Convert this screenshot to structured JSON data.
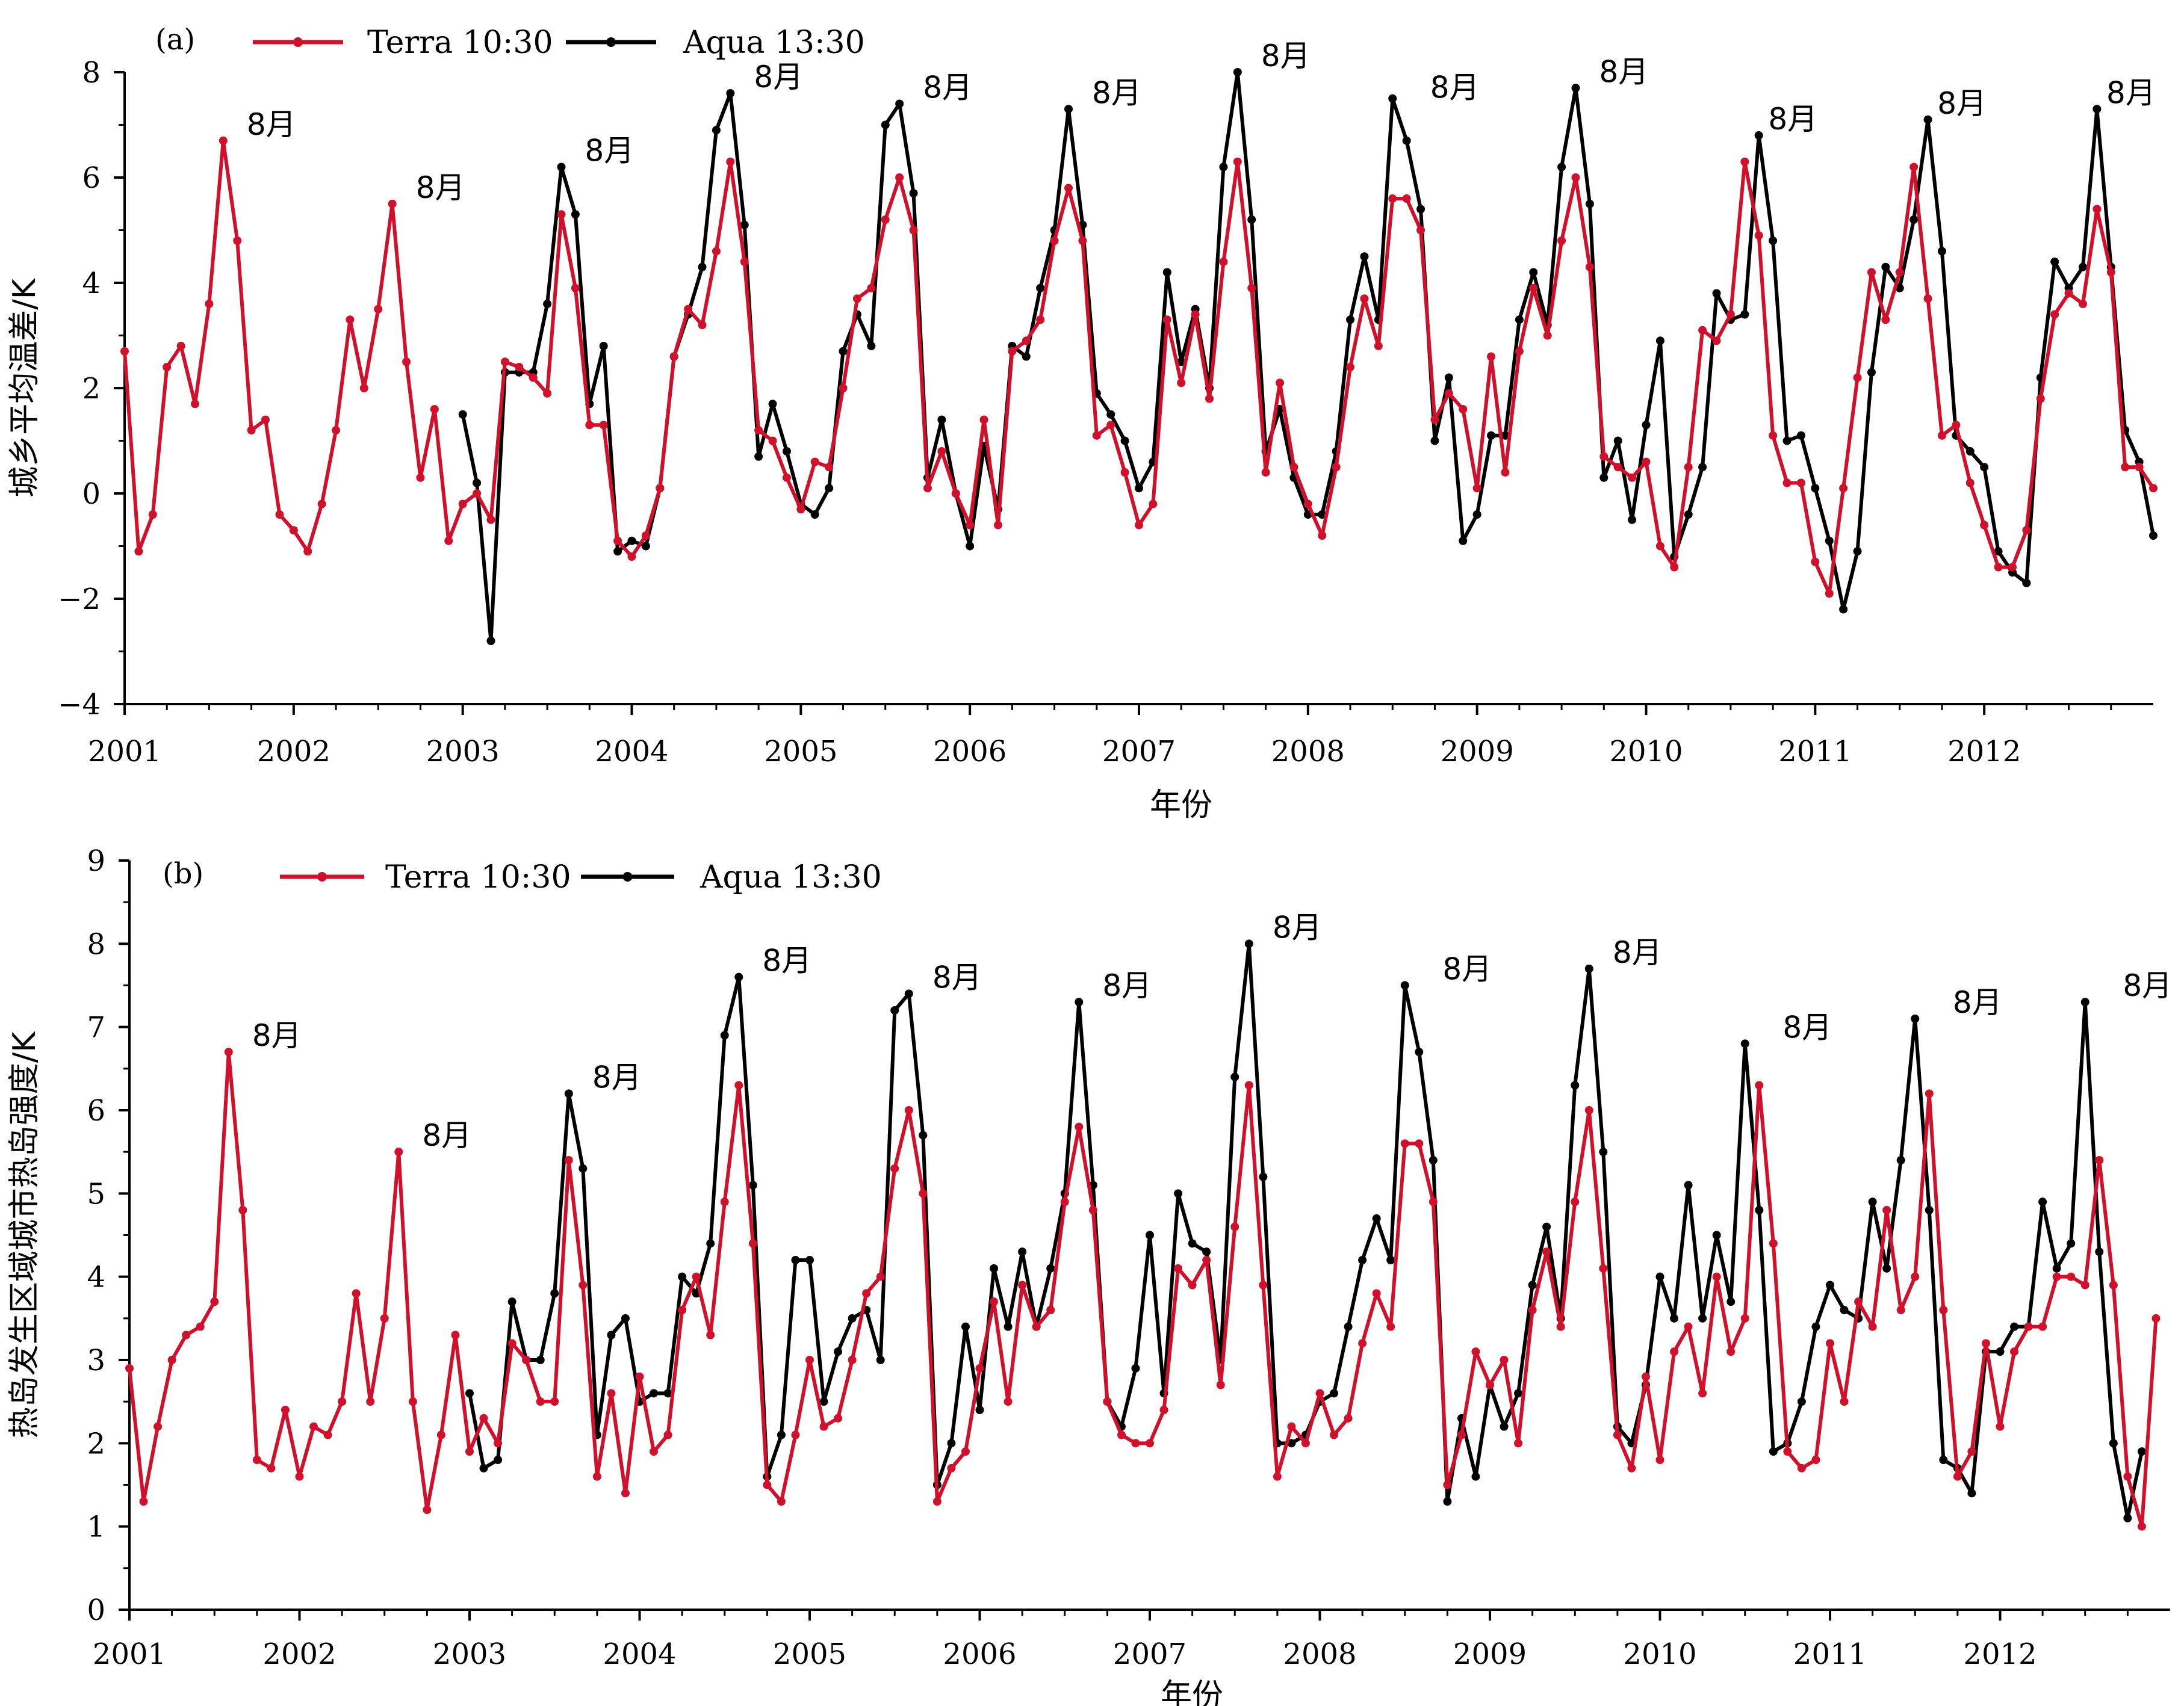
{
  "chart_data": [
    {
      "type": "line",
      "panel_label": "(a)",
      "xlabel": "年份",
      "ylabel": "城乡平均温差/K",
      "ylim": [
        -4,
        8
      ],
      "yticks": [
        -4,
        -2,
        0,
        2,
        4,
        6,
        8
      ],
      "xlim": [
        2001,
        2013
      ],
      "xticks": [
        2001,
        2002,
        2003,
        2004,
        2005,
        2006,
        2007,
        2008,
        2009,
        2010,
        2011,
        2012
      ],
      "legend": [
        {
          "name": "Terra 10:30",
          "color": "#d0112b"
        },
        {
          "name": "Aqua 13:30",
          "color": "#000000"
        }
      ],
      "series": [
        {
          "name": "Terra 10:30",
          "color": "#d0112b",
          "start": 2001.0,
          "values": [
            2.7,
            -1.1,
            -0.4,
            2.4,
            2.8,
            1.7,
            3.6,
            6.7,
            4.8,
            1.2,
            1.4,
            -0.4,
            -0.7,
            -1.1,
            -0.2,
            1.2,
            3.3,
            2.0,
            3.5,
            5.5,
            2.5,
            0.3,
            1.6,
            -0.9,
            -0.2,
            0.0,
            -0.5,
            2.5,
            2.4,
            2.2,
            1.9,
            5.3,
            3.9,
            1.3,
            1.3,
            -0.9,
            -1.2,
            -0.8,
            0.1,
            2.6,
            3.5,
            3.2,
            4.6,
            6.3,
            4.4,
            1.2,
            1.0,
            0.3,
            -0.3,
            0.6,
            0.5,
            2.0,
            3.7,
            3.9,
            5.2,
            6.0,
            5.0,
            0.1,
            0.8,
            0.0,
            -0.6,
            1.4,
            -0.6,
            2.7,
            2.9,
            3.3,
            4.8,
            5.8,
            4.8,
            1.1,
            1.3,
            0.4,
            -0.6,
            -0.2,
            3.3,
            2.1,
            3.4,
            1.8,
            4.4,
            6.3,
            3.9,
            0.4,
            2.1,
            0.5,
            -0.2,
            -0.8,
            0.5,
            2.4,
            3.7,
            2.8,
            5.6,
            5.6,
            5.0,
            1.4,
            1.9,
            1.6,
            0.1,
            2.6,
            0.4,
            2.7,
            3.9,
            3.0,
            4.8,
            6.0,
            4.3,
            0.7,
            0.5,
            0.3,
            0.6,
            -1.0,
            -1.4,
            0.5,
            3.1,
            2.9,
            3.4,
            6.3,
            4.9,
            1.1,
            0.2,
            0.2,
            -1.3,
            -1.9,
            0.1,
            2.2,
            4.2,
            3.3,
            4.2,
            6.2,
            3.7,
            1.1,
            1.3,
            0.2,
            -0.6,
            -1.4,
            -1.4,
            -0.7,
            1.8,
            3.4,
            3.8,
            3.6,
            5.4,
            4.2,
            0.5,
            0.5,
            0.1
          ]
        },
        {
          "name": "Aqua 13:30",
          "color": "#000000",
          "start": 2003.0,
          "values": [
            1.5,
            0.2,
            -2.8,
            2.3,
            2.3,
            2.3,
            3.6,
            6.2,
            5.3,
            1.7,
            2.8,
            -1.1,
            -0.9,
            -1.0,
            0.1,
            2.6,
            3.4,
            4.3,
            6.9,
            7.6,
            5.1,
            0.7,
            1.7,
            0.8,
            -0.2,
            -0.4,
            0.1,
            2.7,
            3.4,
            2.8,
            7.0,
            7.4,
            5.7,
            0.3,
            1.4,
            0.0,
            -1.0,
            0.9,
            -0.3,
            2.8,
            2.6,
            3.9,
            5.0,
            7.3,
            5.1,
            1.9,
            1.5,
            1.0,
            0.1,
            0.6,
            4.2,
            2.5,
            3.5,
            2.0,
            6.2,
            8.0,
            5.2,
            0.8,
            1.6,
            0.3,
            -0.4,
            -0.4,
            0.8,
            3.3,
            4.5,
            3.3,
            7.5,
            6.7,
            5.4,
            1.0,
            2.2,
            -0.9,
            -0.4,
            1.1,
            1.1,
            3.3,
            4.2,
            3.2,
            6.2,
            7.7,
            5.5,
            0.3,
            1.0,
            -0.5,
            1.3,
            2.9,
            -1.2,
            -0.4,
            0.5,
            3.8,
            3.3,
            3.4,
            6.8,
            4.8,
            1.0,
            1.1,
            0.1,
            -0.9,
            -2.2,
            -1.1,
            2.3,
            4.3,
            3.9,
            5.2,
            7.1,
            4.6,
            1.1,
            0.8,
            0.5,
            -1.1,
            -1.5,
            -1.7,
            2.2,
            4.4,
            3.9,
            4.3,
            7.3,
            4.3,
            1.2,
            0.6,
            -0.8
          ]
        }
      ],
      "annotations": [
        {
          "text": "8月",
          "x": 2001.58,
          "y": 6.7
        },
        {
          "text": "8月",
          "x": 2002.58,
          "y": 5.5
        },
        {
          "text": "8月",
          "x": 2003.58,
          "y": 6.2
        },
        {
          "text": "8月",
          "x": 2004.58,
          "y": 7.6
        },
        {
          "text": "8月",
          "x": 2005.58,
          "y": 7.4
        },
        {
          "text": "8月",
          "x": 2006.58,
          "y": 7.3
        },
        {
          "text": "8月",
          "x": 2007.58,
          "y": 8.0
        },
        {
          "text": "8月",
          "x": 2008.58,
          "y": 7.4
        },
        {
          "text": "8月",
          "x": 2009.58,
          "y": 7.7
        },
        {
          "text": "8月",
          "x": 2010.58,
          "y": 6.8
        },
        {
          "text": "8月",
          "x": 2011.58,
          "y": 7.1
        },
        {
          "text": "8月",
          "x": 2012.58,
          "y": 7.3
        }
      ]
    },
    {
      "type": "line",
      "panel_label": "(b)",
      "xlabel": "年份",
      "ylabel": "热岛发生区域城市热岛强度/K",
      "ylim": [
        0,
        9
      ],
      "yticks": [
        0,
        1,
        2,
        3,
        4,
        5,
        6,
        7,
        8,
        9
      ],
      "xlim": [
        2001,
        2013
      ],
      "xticks": [
        2001,
        2002,
        2003,
        2004,
        2005,
        2006,
        2007,
        2008,
        2009,
        2010,
        2011,
        2012
      ],
      "legend": [
        {
          "name": "Terra 10:30",
          "color": "#d0112b"
        },
        {
          "name": "Aqua 13:30",
          "color": "#000000"
        }
      ],
      "series": [
        {
          "name": "Terra 10:30",
          "color": "#d0112b",
          "start": 2001.0,
          "values": [
            2.9,
            1.3,
            2.2,
            3.0,
            3.3,
            3.4,
            3.7,
            6.7,
            4.8,
            1.8,
            1.7,
            2.4,
            1.6,
            2.2,
            2.1,
            2.5,
            3.8,
            2.5,
            3.5,
            5.5,
            2.5,
            1.2,
            2.1,
            3.3,
            1.9,
            2.3,
            2.0,
            3.2,
            3.0,
            2.5,
            2.5,
            5.4,
            3.9,
            1.6,
            2.6,
            1.4,
            2.8,
            1.9,
            2.1,
            3.6,
            4.0,
            3.3,
            4.9,
            6.3,
            4.4,
            1.5,
            1.3,
            2.1,
            3.0,
            2.2,
            2.3,
            3.0,
            3.8,
            4.0,
            5.3,
            6.0,
            5.0,
            1.3,
            1.7,
            1.9,
            2.9,
            3.7,
            2.5,
            3.9,
            3.4,
            3.6,
            4.9,
            5.8,
            4.8,
            2.5,
            2.1,
            2.0,
            2.0,
            2.4,
            4.1,
            3.9,
            4.2,
            2.7,
            4.6,
            6.3,
            3.9,
            1.6,
            2.2,
            2.0,
            2.6,
            2.1,
            2.3,
            3.2,
            3.8,
            3.4,
            5.6,
            5.6,
            4.9,
            1.5,
            2.1,
            3.1,
            2.7,
            3.0,
            2.0,
            3.6,
            4.3,
            3.4,
            4.9,
            6.0,
            4.1,
            2.1,
            1.7,
            2.8,
            1.8,
            3.1,
            3.4,
            2.6,
            4.0,
            3.1,
            3.5,
            6.3,
            4.4,
            1.9,
            1.7,
            1.8,
            3.2,
            2.5,
            3.7,
            3.4,
            4.8,
            3.6,
            4.0,
            6.2,
            3.6,
            1.6,
            1.9,
            3.2,
            2.2,
            3.1,
            3.4,
            3.4,
            4.0,
            4.0,
            3.9,
            5.4,
            3.9,
            1.6,
            1.0,
            3.5
          ]
        },
        {
          "name": "Aqua 13:30",
          "color": "#000000",
          "start": 2003.0,
          "values": [
            2.6,
            1.7,
            1.8,
            3.7,
            3.0,
            3.0,
            3.8,
            6.2,
            5.3,
            2.1,
            3.3,
            3.5,
            2.5,
            2.6,
            2.6,
            4.0,
            3.8,
            4.4,
            6.9,
            7.6,
            5.1,
            1.6,
            2.1,
            4.2,
            4.2,
            2.5,
            3.1,
            3.5,
            3.6,
            3.0,
            7.2,
            7.4,
            5.7,
            1.5,
            2.0,
            3.4,
            2.4,
            4.1,
            3.4,
            4.3,
            3.4,
            4.1,
            5.0,
            7.3,
            5.1,
            2.5,
            2.2,
            2.9,
            4.5,
            2.6,
            5.0,
            4.4,
            4.3,
            3.0,
            6.4,
            8.0,
            5.2,
            2.0,
            2.0,
            2.1,
            2.5,
            2.6,
            3.4,
            4.2,
            4.7,
            4.2,
            7.5,
            6.7,
            5.4,
            1.3,
            2.3,
            1.6,
            2.7,
            2.2,
            2.6,
            3.9,
            4.6,
            3.5,
            6.3,
            7.7,
            5.5,
            2.2,
            2.0,
            2.7,
            4.0,
            3.5,
            5.1,
            3.5,
            4.5,
            3.7,
            6.8,
            4.8,
            1.9,
            2.0,
            2.5,
            3.4,
            3.9,
            3.6,
            3.5,
            4.9,
            4.1,
            5.4,
            7.1,
            4.8,
            1.8,
            1.7,
            1.4,
            3.1,
            3.1,
            3.4,
            3.4,
            4.9,
            4.1,
            4.4,
            7.3,
            4.3,
            2.0,
            1.1,
            1.9
          ]
        }
      ],
      "annotations": [
        {
          "text": "8月",
          "x": 2001.58,
          "y": 6.7
        },
        {
          "text": "8月",
          "x": 2002.58,
          "y": 5.5
        },
        {
          "text": "8月",
          "x": 2003.58,
          "y": 6.2
        },
        {
          "text": "8月",
          "x": 2004.58,
          "y": 7.6
        },
        {
          "text": "8月",
          "x": 2005.58,
          "y": 7.4
        },
        {
          "text": "8月",
          "x": 2006.58,
          "y": 7.3
        },
        {
          "text": "8月",
          "x": 2007.58,
          "y": 8.0
        },
        {
          "text": "8月",
          "x": 2008.58,
          "y": 7.5
        },
        {
          "text": "8月",
          "x": 2009.58,
          "y": 7.7
        },
        {
          "text": "8月",
          "x": 2010.58,
          "y": 6.8
        },
        {
          "text": "8月",
          "x": 2011.58,
          "y": 7.1
        },
        {
          "text": "8月",
          "x": 2012.58,
          "y": 7.3
        }
      ]
    }
  ]
}
